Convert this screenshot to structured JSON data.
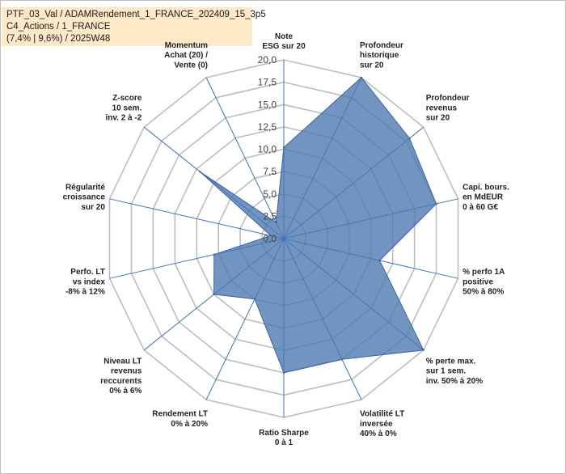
{
  "title_box": {
    "line1": "PTF_03_Val / ADAMRendement_1_FRANCE_202409_15_3p5",
    "line2": "C4_Actions / 1_FRANCE",
    "line3": "(7,4% | 9,6%) / 2025W48"
  },
  "colors": {
    "fill": "#4a76b0",
    "stroke": "#3a62a0",
    "grid": "#bdbdbd",
    "spoke": "#4472c4"
  },
  "chart_data": {
    "type": "radar",
    "title": "PTF_03_Val / ADAMRendement_1_FRANCE_202409_15_3p5",
    "rmin": 0,
    "rmax": 20,
    "ticks": [
      "0,0",
      "2,5",
      "5,0",
      "7,5",
      "10,0",
      "12,5",
      "15,0",
      "17,5",
      "20,0"
    ],
    "tick_values": [
      0,
      2.5,
      5,
      7.5,
      10,
      12.5,
      15,
      17.5,
      20
    ],
    "categories": [
      {
        "lines": [
          "Note",
          "ESG sur 20"
        ]
      },
      {
        "lines": [
          "Profondeur",
          "historique",
          "sur 20"
        ]
      },
      {
        "lines": [
          "Profondeur",
          "revenus",
          "sur 20"
        ]
      },
      {
        "lines": [
          "Capi. bours.",
          "en MdEUR",
          "0 à 60 G€"
        ]
      },
      {
        "lines": [
          "% perfo 1A",
          "positive",
          "50% à 80%"
        ]
      },
      {
        "lines": [
          "% perte max.",
          "sur 1 sem.",
          "inv. 50% à 20%"
        ]
      },
      {
        "lines": [
          "Volatilité LT",
          "inversée",
          "40% à 0%"
        ]
      },
      {
        "lines": [
          "Ratio Sharpe",
          "0 à 1"
        ]
      },
      {
        "lines": [
          "Rendement LT",
          "0% à 20%"
        ]
      },
      {
        "lines": [
          "Niveau LT",
          "revenus",
          "reccurents",
          "0% à 6%"
        ]
      },
      {
        "lines": [
          "Perfo. LT",
          "vs index",
          "-8% à 12%"
        ]
      },
      {
        "lines": [
          "Régularité",
          "croissance",
          "sur 20"
        ]
      },
      {
        "lines": [
          "Z-score",
          "10 sem.",
          "inv. 2 à -2"
        ]
      },
      {
        "lines": [
          "Momentum",
          "Achat (20) /",
          "Vente (0)"
        ]
      }
    ],
    "series": [
      {
        "name": "PTF_03_Val",
        "values": [
          10.2,
          20,
          18,
          17.5,
          11,
          20,
          15,
          15,
          7.5,
          10,
          8,
          1.5,
          12,
          2
        ]
      }
    ]
  }
}
